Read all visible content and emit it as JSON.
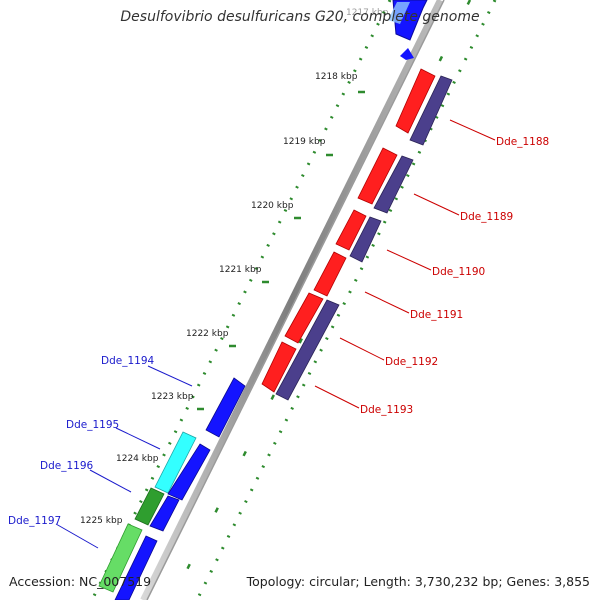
{
  "title": "Desulfovibrio desulfuricans G20, complete genome",
  "accession_text": "Accession: NC_007519",
  "summary_text": "Topology: circular; Length: 3,730,232 bp; Genes: 3,855",
  "colors": {
    "backbone": "#8a8a8a",
    "tick_dots": "#2e8b2e",
    "red_gene": "#ff1f1f",
    "purple_gene": "#4b3f8c",
    "blue_gene": "#1414ff",
    "cyan_gene": "#33ffff",
    "green_gene": "#2f9e2f",
    "light_green_gene": "#66dd66",
    "right_label": "#cc0000",
    "left_label": "#1a1acc"
  },
  "ticks": [
    {
      "label": "1217 kbp",
      "faded": true
    },
    {
      "label": "1218 kbp"
    },
    {
      "label": "1219 kbp"
    },
    {
      "label": "1220 kbp"
    },
    {
      "label": "1221 kbp"
    },
    {
      "label": "1222 kbp"
    },
    {
      "label": "1223 kbp"
    },
    {
      "label": "1224 kbp"
    },
    {
      "label": "1225 kbp"
    }
  ],
  "genes_right": [
    {
      "label": "Dde_1188"
    },
    {
      "label": "Dde_1189"
    },
    {
      "label": "Dde_1190"
    },
    {
      "label": "Dde_1191"
    },
    {
      "label": "Dde_1192"
    },
    {
      "label": "Dde_1193"
    }
  ],
  "genes_left": [
    {
      "label": "Dde_1194"
    },
    {
      "label": "Dde_1195"
    },
    {
      "label": "Dde_1196"
    },
    {
      "label": "Dde_1197"
    }
  ]
}
